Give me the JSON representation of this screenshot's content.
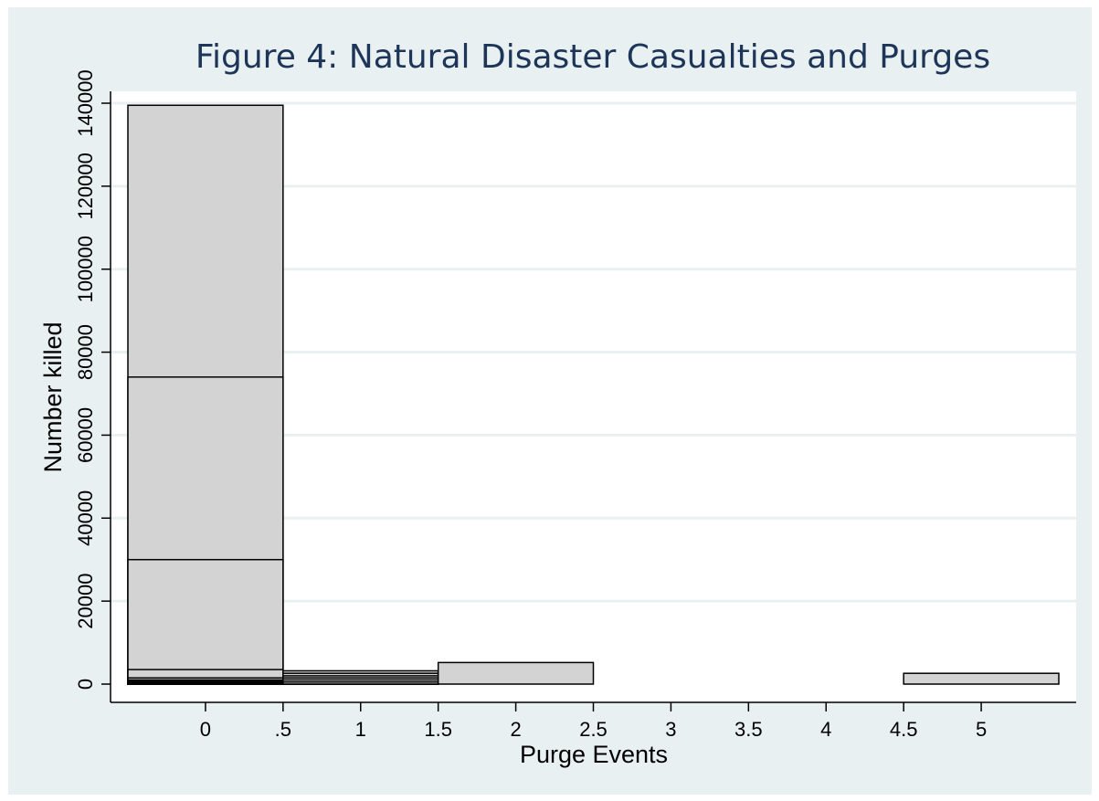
{
  "chart_data": {
    "type": "bar",
    "title": "Figure 4: Natural Disaster Casualties and Purges",
    "xlabel": "Purge Events",
    "ylabel": "Number killed",
    "x_ticks": [
      {
        "value": 0,
        "label": "0"
      },
      {
        "value": 0.5,
        "label": ".5"
      },
      {
        "value": 1,
        "label": "1"
      },
      {
        "value": 1.5,
        "label": "1.5"
      },
      {
        "value": 2,
        "label": "2"
      },
      {
        "value": 2.5,
        "label": "2.5"
      },
      {
        "value": 3,
        "label": "3"
      },
      {
        "value": 3.5,
        "label": "3.5"
      },
      {
        "value": 4,
        "label": "4"
      },
      {
        "value": 4.5,
        "label": "4.5"
      },
      {
        "value": 5,
        "label": "5"
      }
    ],
    "y_ticks": [
      {
        "value": 0,
        "label": "0"
      },
      {
        "value": 20000,
        "label": "20000"
      },
      {
        "value": 40000,
        "label": "40000"
      },
      {
        "value": 60000,
        "label": "60000"
      },
      {
        "value": 80000,
        "label": "80000"
      },
      {
        "value": 100000,
        "label": "100000"
      },
      {
        "value": 120000,
        "label": "120000"
      },
      {
        "value": 140000,
        "label": "140000"
      }
    ],
    "xlim": [
      -0.5,
      5.5
    ],
    "ylim": [
      0,
      140000
    ],
    "grid": true,
    "bars": [
      {
        "x0": -0.5,
        "x1": 0.5,
        "values": [
          139500,
          74000,
          30000,
          3500,
          1500,
          1000,
          700,
          400,
          200
        ]
      },
      {
        "x0": 0.5,
        "x1": 1.5,
        "values": [
          3200,
          2600,
          2000,
          1500,
          1000,
          500
        ]
      },
      {
        "x0": 1.5,
        "x1": 2.5,
        "values": [
          5200
        ]
      },
      {
        "x0": 4.5,
        "x1": 5.5,
        "values": [
          2600
        ]
      }
    ],
    "colors": {
      "background": "#e9f0f2",
      "plot_area": "#ffffff",
      "gridline": "#eaf0f2",
      "bar_fill": "#d3d3d3",
      "bar_stroke": "#000000",
      "title": "#1d3557"
    }
  }
}
